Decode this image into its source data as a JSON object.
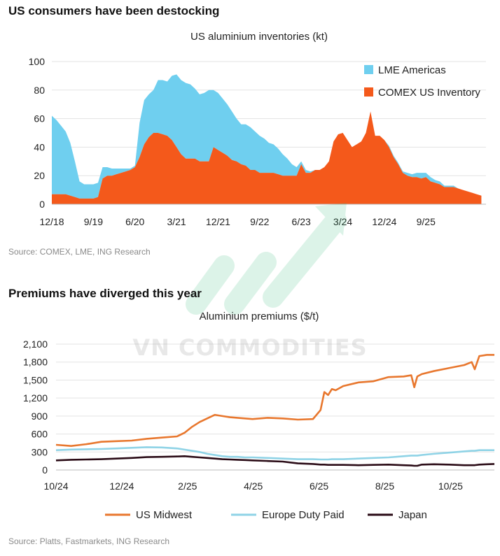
{
  "watermark": "VN COMMODITIES",
  "colors": {
    "lme_americas": "#6fcfef",
    "comex": "#f4591b",
    "us_midwest": "#e8772e",
    "europe": "#8fd3e6",
    "japan": "#2a0b16",
    "grid": "#e3e3e3"
  },
  "chart_data": [
    {
      "type": "area",
      "heading": "US consumers have been destocking",
      "title": "US aluminium inventories (kt)",
      "source": "Source: COMEX, LME, ING Research",
      "xlabel": "",
      "ylabel": "",
      "ylim": [
        0,
        100
      ],
      "yticks": [
        "100",
        "80",
        "60",
        "40",
        "20",
        "0"
      ],
      "yticks_values": [
        100,
        80,
        60,
        40,
        20,
        0
      ],
      "xlim": [
        0,
        94
      ],
      "xticks": [
        {
          "label": "12/18",
          "month": 0
        },
        {
          "label": "9/19",
          "month": 9
        },
        {
          "label": "6/20",
          "month": 18
        },
        {
          "label": "3/21",
          "month": 27
        },
        {
          "label": "12/21",
          "month": 36
        },
        {
          "label": "9/22",
          "month": 45
        },
        {
          "label": "6/23",
          "month": 54
        },
        {
          "label": "3/24",
          "month": 63
        },
        {
          "label": "12/24",
          "month": 72
        },
        {
          "label": "9/25",
          "month": 81
        }
      ],
      "stacked": true,
      "x_month": [
        0,
        1,
        2,
        3,
        4,
        5,
        6,
        7,
        8,
        9,
        10,
        11,
        12,
        13,
        14,
        15,
        16,
        17,
        18,
        19,
        20,
        21,
        22,
        23,
        24,
        25,
        26,
        27,
        28,
        29,
        30,
        31,
        32,
        33,
        34,
        35,
        36,
        37,
        38,
        39,
        40,
        41,
        42,
        43,
        44,
        45,
        46,
        47,
        48,
        49,
        50,
        51,
        52,
        53,
        54,
        55,
        56,
        57,
        58,
        59,
        60,
        61,
        62,
        63,
        64,
        65,
        66,
        67,
        68,
        69,
        70,
        71,
        72,
        73,
        74,
        75,
        76,
        77,
        78,
        79,
        80,
        81,
        82,
        83,
        84,
        85,
        86,
        87,
        88,
        89,
        90,
        91,
        92,
        93
      ],
      "series": [
        {
          "name": "COMEX US Inventory",
          "values": [
            7,
            7,
            7,
            7,
            6,
            5,
            4,
            4,
            4,
            4,
            5,
            18,
            20,
            20,
            21,
            22,
            23,
            24,
            26,
            33,
            42,
            47,
            50,
            50,
            49,
            48,
            45,
            40,
            35,
            32,
            32,
            32,
            30,
            30,
            30,
            40,
            38,
            36,
            34,
            31,
            30,
            28,
            27,
            24,
            24,
            22,
            22,
            22,
            22,
            21,
            20,
            20,
            20,
            20,
            28,
            22,
            22,
            24,
            24,
            26,
            30,
            44,
            49,
            50,
            45,
            40,
            42,
            44,
            50,
            65,
            48,
            48,
            45,
            40,
            33,
            28,
            22,
            20,
            19,
            19,
            18,
            19,
            16,
            15,
            14,
            12,
            12,
            12,
            11,
            10,
            9,
            8,
            7,
            6
          ]
        },
        {
          "name": "LME Americas",
          "values": [
            55,
            52,
            48,
            44,
            37,
            25,
            12,
            10,
            10,
            10,
            10,
            8,
            6,
            5,
            4,
            3,
            2,
            1,
            1,
            24,
            31,
            30,
            30,
            37,
            38,
            38,
            45,
            51,
            52,
            53,
            52,
            49,
            47,
            48,
            50,
            40,
            40,
            38,
            36,
            34,
            30,
            28,
            29,
            30,
            27,
            26,
            24,
            21,
            20,
            18,
            15,
            12,
            8,
            6,
            2,
            2,
            1,
            0,
            0,
            0,
            0,
            0,
            0,
            0,
            0,
            0,
            0,
            0,
            0,
            0,
            0,
            0,
            0,
            1,
            1,
            1,
            1,
            2,
            2,
            3,
            4,
            3,
            3,
            2,
            2,
            1,
            1,
            1,
            0,
            0,
            0,
            0,
            0,
            0
          ]
        }
      ]
    },
    {
      "type": "line",
      "heading": "Premiums have diverged this year",
      "title": "Aluminium premiums ($/t)",
      "source": "Source: Platts, Fastmarkets, ING Research",
      "xlabel": "",
      "ylabel": "",
      "ylim": [
        0,
        2100
      ],
      "yticks": [
        "2,100",
        "1,800",
        "1,500",
        "1,200",
        "900",
        "600",
        "300",
        "0"
      ],
      "yticks_values": [
        2100,
        1800,
        1500,
        1200,
        900,
        600,
        300,
        0
      ],
      "xlim": [
        0,
        58
      ],
      "xticks": [
        {
          "label": "10/24",
          "week": 0
        },
        {
          "label": "12/24",
          "week": 8.7
        },
        {
          "label": "2/25",
          "week": 17.4
        },
        {
          "label": "4/25",
          "week": 26.1
        },
        {
          "label": "6/25",
          "week": 34.8
        },
        {
          "label": "8/25",
          "week": 43.5
        },
        {
          "label": "10/25",
          "week": 52.2
        }
      ],
      "x_week": [
        0,
        2,
        4,
        6,
        8,
        10,
        12,
        14,
        16,
        17,
        18,
        19,
        20,
        21,
        22,
        23,
        24,
        25,
        26,
        28,
        30,
        32,
        34,
        35,
        35.5,
        36,
        36.5,
        37,
        38,
        40,
        42,
        44,
        46,
        47,
        47.4,
        47.8,
        48.4,
        50,
        52,
        54,
        55,
        55.4,
        56,
        57,
        58
      ],
      "series": [
        {
          "name": "US Midwest",
          "values": [
            420,
            400,
            430,
            470,
            480,
            490,
            520,
            540,
            560,
            620,
            720,
            800,
            860,
            920,
            900,
            880,
            870,
            860,
            850,
            870,
            860,
            840,
            850,
            1000,
            1300,
            1250,
            1350,
            1330,
            1400,
            1460,
            1480,
            1550,
            1560,
            1580,
            1380,
            1560,
            1600,
            1650,
            1700,
            1750,
            1800,
            1680,
            1900,
            1920,
            1920
          ]
        },
        {
          "name": "Europe Duty Paid",
          "values": [
            330,
            340,
            345,
            350,
            360,
            370,
            380,
            375,
            360,
            340,
            320,
            300,
            270,
            250,
            230,
            220,
            220,
            210,
            210,
            200,
            190,
            180,
            180,
            175,
            175,
            175,
            180,
            180,
            180,
            190,
            200,
            210,
            230,
            240,
            240,
            240,
            250,
            270,
            290,
            310,
            320,
            320,
            330,
            330,
            330
          ]
        },
        {
          "name": "Japan",
          "values": [
            160,
            170,
            175,
            180,
            190,
            200,
            215,
            220,
            225,
            230,
            220,
            210,
            200,
            190,
            180,
            175,
            170,
            165,
            160,
            150,
            140,
            110,
            100,
            90,
            90,
            85,
            85,
            85,
            85,
            80,
            85,
            90,
            80,
            75,
            70,
            70,
            90,
            95,
            90,
            80,
            80,
            80,
            90,
            95,
            100
          ]
        }
      ]
    }
  ]
}
